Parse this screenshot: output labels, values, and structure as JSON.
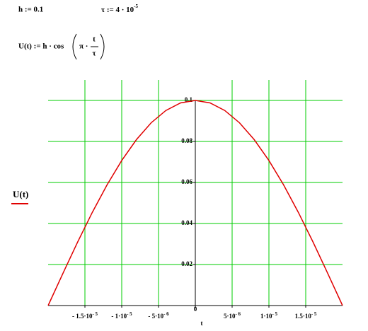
{
  "worksheet": {
    "h_def": "h := 0.1",
    "tau_def": {
      "label": "τ := 4 · 10",
      "exponent": "-5"
    },
    "u_def": {
      "lhs": "U(t) := h · cos",
      "arg": "π ·",
      "numerator": "t",
      "denominator": "τ"
    }
  },
  "chart_data": {
    "type": "line",
    "x_label": "t",
    "x": [
      -2e-05,
      -1.8e-05,
      -1.6e-05,
      -1.4e-05,
      -1.2e-05,
      -1e-05,
      -8e-06,
      -6e-06,
      -4e-06,
      -2e-06,
      0,
      2e-06,
      4e-06,
      6e-06,
      8e-06,
      1e-05,
      1.2e-05,
      1.4e-05,
      1.6e-05,
      1.8e-05,
      2e-05
    ],
    "series": [
      {
        "name": "U(t)",
        "color": "#e00000",
        "values": [
          0,
          0.0156,
          0.0309,
          0.0454,
          0.0588,
          0.0707,
          0.0809,
          0.0891,
          0.0951,
          0.0988,
          0.1,
          0.0988,
          0.0951,
          0.0891,
          0.0809,
          0.0707,
          0.0588,
          0.0454,
          0.0309,
          0.0156,
          0
        ]
      }
    ],
    "xlim": [
      -2e-05,
      2e-05
    ],
    "ylim": [
      0,
      0.11
    ],
    "xticks": [
      {
        "value": -1.5e-05,
        "label": "- 1.5·10",
        "exponent": "- 5"
      },
      {
        "value": -1e-05,
        "label": "- 1·10",
        "exponent": "- 5"
      },
      {
        "value": -5e-06,
        "label": "- 5·10",
        "exponent": "- 6"
      },
      0,
      {
        "value": 5e-06,
        "label": "5·10",
        "exponent": "- 6"
      },
      {
        "value": 1e-05,
        "label": "1·10",
        "exponent": "- 5"
      },
      {
        "value": 1.5e-05,
        "label": "1.5·10",
        "exponent": "- 5"
      }
    ],
    "yticks": [
      0.02,
      0.04,
      0.06,
      0.08,
      0.1
    ],
    "grid": true,
    "grid_color": "#00cc00"
  }
}
